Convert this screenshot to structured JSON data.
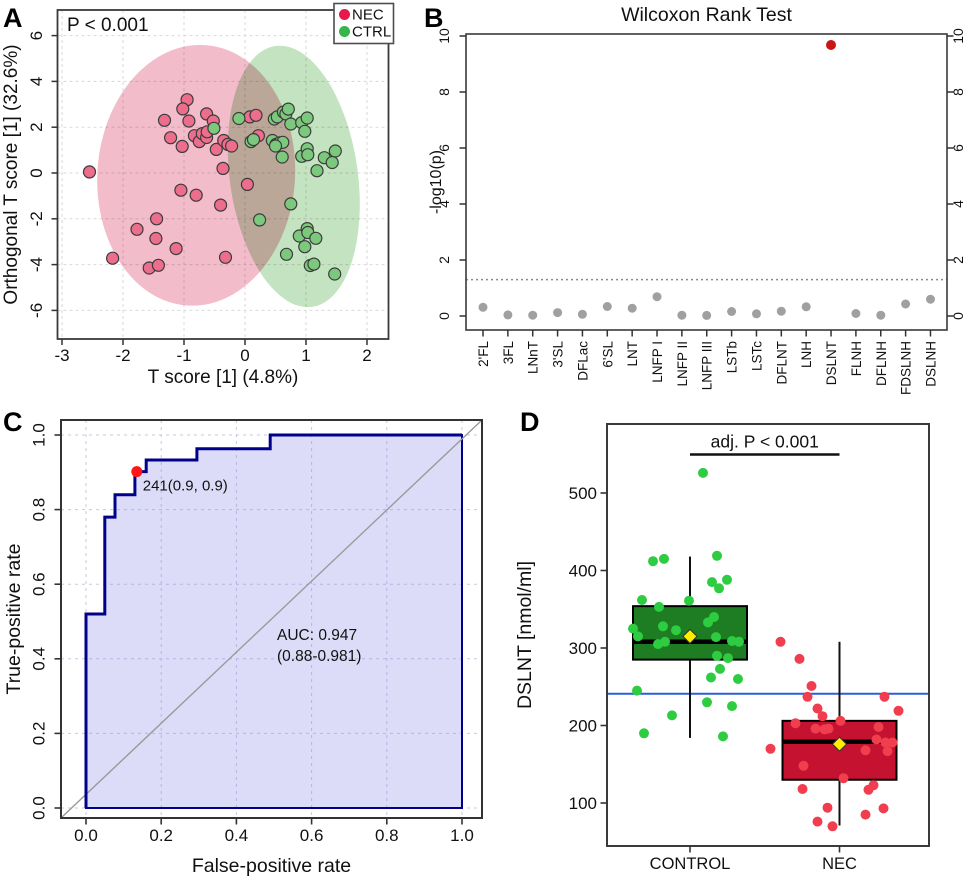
{
  "panels": [
    {
      "label": "A"
    },
    {
      "label": "B"
    },
    {
      "label": "C"
    },
    {
      "label": "D"
    }
  ],
  "chart_data": [
    {
      "type": "scatter",
      "panel": "A",
      "annotation": "P < 0.001",
      "xlabel": "T score [1] (4.8%)",
      "ylabel": "Orthogonal T score [1] (32.6%)",
      "xticks": [
        -3,
        -2,
        -1,
        0,
        1,
        2
      ],
      "yticks": [
        -6,
        -4,
        -2,
        0,
        2,
        4,
        6
      ],
      "xlim": [
        -3,
        2.3
      ],
      "ylim": [
        -7.4,
        7.3
      ],
      "grid": true,
      "legend": [
        {
          "label": "NEC",
          "color": "#e8194a"
        },
        {
          "label": "CTRL",
          "color": "#38b44a"
        }
      ],
      "ellipses": [
        {
          "group": "NEC",
          "cx": -0.8,
          "cy": -0.1,
          "rx": 1.62,
          "ry": 5.7,
          "angle_deg": 4,
          "fill": "#f2bcca"
        },
        {
          "group": "CTRL",
          "cx": 0.8,
          "cy": -0.15,
          "rx": 1.05,
          "ry": 5.75,
          "angle_deg": -8,
          "fill": "#c4e3c0"
        }
      ],
      "series": [
        {
          "name": "NEC",
          "fill": "#ec6d8c",
          "stroke": "#3c3c3c",
          "points": [
            [
              -2.55,
              0.05
            ],
            [
              -0.95,
              3.2
            ],
            [
              -1.02,
              2.8
            ],
            [
              -1.32,
              2.3
            ],
            [
              -0.92,
              2.27
            ],
            [
              -0.63,
              2.58
            ],
            [
              -0.52,
              2.27
            ],
            [
              -1.22,
              1.54
            ],
            [
              -1.03,
              1.16
            ],
            [
              -0.83,
              1.63
            ],
            [
              -0.75,
              1.37
            ],
            [
              -0.7,
              1.72
            ],
            [
              -0.63,
              1.55
            ],
            [
              -0.62,
              1.8
            ],
            [
              -0.47,
              1.03
            ],
            [
              -0.35,
              1.42
            ],
            [
              -0.28,
              1.25
            ],
            [
              -0.22,
              1.18
            ],
            [
              0.08,
              2.45
            ],
            [
              0.18,
              2.52
            ],
            [
              0.22,
              1.63
            ],
            [
              -0.36,
              0.2
            ],
            [
              0.04,
              -0.5
            ],
            [
              -1.05,
              -0.75
            ],
            [
              -0.8,
              -0.97
            ],
            [
              -0.4,
              -1.4
            ],
            [
              -1.45,
              -2.0
            ],
            [
              -1.77,
              -2.46
            ],
            [
              -1.46,
              -2.86
            ],
            [
              -1.13,
              -3.3
            ],
            [
              -2.17,
              -3.72
            ],
            [
              -1.57,
              -4.15
            ],
            [
              -1.42,
              -4.03
            ],
            [
              -0.32,
              -3.68
            ]
          ]
        },
        {
          "name": "CTRL",
          "fill": "#7cc87c",
          "stroke": "#3c3c3c",
          "points": [
            [
              -0.51,
              1.95
            ],
            [
              -0.1,
              2.38
            ],
            [
              0.1,
              1.37
            ],
            [
              0.14,
              1.46
            ],
            [
              0.48,
              2.36
            ],
            [
              0.53,
              2.45
            ],
            [
              0.63,
              2.66
            ],
            [
              0.67,
              2.58
            ],
            [
              0.71,
              2.79
            ],
            [
              0.75,
              2.14
            ],
            [
              0.93,
              2.2
            ],
            [
              1.02,
              2.4
            ],
            [
              0.98,
              1.82
            ],
            [
              0.45,
              1.42
            ],
            [
              0.51,
              1.25
            ],
            [
              0.57,
              1.32
            ],
            [
              0.62,
              1.34
            ],
            [
              0.5,
              1.18
            ],
            [
              0.61,
              0.7
            ],
            [
              0.93,
              0.73
            ],
            [
              1.02,
              1.06
            ],
            [
              1.03,
              0.8
            ],
            [
              1.3,
              0.67
            ],
            [
              1.48,
              0.96
            ],
            [
              1.43,
              0.46
            ],
            [
              1.18,
              0.1
            ],
            [
              0.75,
              -1.35
            ],
            [
              0.24,
              -2.05
            ],
            [
              0.89,
              -2.75
            ],
            [
              1.02,
              -2.43
            ],
            [
              1.03,
              -2.6
            ],
            [
              1.16,
              -2.85
            ],
            [
              0.98,
              -3.22
            ],
            [
              0.68,
              -3.55
            ],
            [
              1.07,
              -4.04
            ],
            [
              1.13,
              -3.98
            ],
            [
              1.47,
              -4.41
            ]
          ]
        }
      ]
    },
    {
      "type": "scatter-categorical",
      "panel": "B",
      "title": "Wilcoxon Rank Test",
      "ylabel": "-log10(p)",
      "yticks": [
        0,
        2,
        4,
        6,
        8,
        10
      ],
      "ylim": [
        0,
        10
      ],
      "threshold": 1.3,
      "categories": [
        "2'FL",
        "3FL",
        "LNnT",
        "3'SL",
        "DFLac",
        "6'SL",
        "LNT",
        "LNFP I",
        "LNFP II",
        "LNFP III",
        "LSTb",
        "LSTc",
        "DFLNT",
        "LNH",
        "DSLNT",
        "FLNH",
        "DFLNH",
        "FDSLNH",
        "DSLNH"
      ],
      "values": [
        0.31,
        0.04,
        0.03,
        0.12,
        0.06,
        0.34,
        0.28,
        0.69,
        0.03,
        0.02,
        0.16,
        0.08,
        0.17,
        0.33,
        9.68,
        0.09,
        0.03,
        0.43,
        0.6
      ],
      "highlight_category": "DSLNT",
      "dot_color": "#a0a0a0",
      "highlight_color": "#cc1414",
      "threshold_color": "#8a8a8a"
    },
    {
      "type": "roc",
      "panel": "C",
      "xlabel": "False-positive rate",
      "ylabel": "True-positive rate",
      "xticks": [
        0.0,
        0.2,
        0.4,
        0.6,
        0.8,
        1.0
      ],
      "yticks": [
        0.0,
        0.2,
        0.4,
        0.6,
        0.8,
        1.0
      ],
      "curve": [
        [
          0,
          0
        ],
        [
          0,
          0.52
        ],
        [
          0.05,
          0.52
        ],
        [
          0.05,
          0.78
        ],
        [
          0.077,
          0.78
        ],
        [
          0.077,
          0.84
        ],
        [
          0.13,
          0.84
        ],
        [
          0.13,
          0.902
        ],
        [
          0.16,
          0.902
        ],
        [
          0.16,
          0.933
        ],
        [
          0.295,
          0.933
        ],
        [
          0.295,
          0.963
        ],
        [
          0.49,
          0.963
        ],
        [
          0.49,
          1
        ],
        [
          1,
          1
        ]
      ],
      "marker": {
        "x": 0.135,
        "y": 0.902,
        "label": "241(0.9, 0.9)",
        "color": "#fe1515"
      },
      "auc_lines": [
        "AUC: 0.947",
        "(0.88-0.981)"
      ],
      "curve_color": "#00008b",
      "fill_color": "rgba(138,138,232,0.30)",
      "text_color": "#2a2aa6",
      "diagonal_color": "#9a9a9a"
    },
    {
      "type": "boxplot",
      "panel": "D",
      "ylabel": "DSLNT [nmol/ml]",
      "yticks": [
        100,
        200,
        300,
        400,
        500
      ],
      "significance": "adj. P < 0.001",
      "threshold": {
        "value": 241,
        "color": "#2b5fd9"
      },
      "mean_marker_color": "#ffee00",
      "groups": [
        {
          "name": "CONTROL",
          "box_color": "#1e7d22",
          "dot_color": "#2ecc40",
          "q1": 285,
          "median": 308,
          "q3": 354,
          "whisker_low": 184,
          "whisker_high": 418,
          "mean": 315,
          "points": [
            [
              13,
              526
            ],
            [
              -37,
              412
            ],
            [
              -26,
              415
            ],
            [
              27,
              419
            ],
            [
              22,
              385
            ],
            [
              37,
              388
            ],
            [
              29,
              377
            ],
            [
              -48,
              362
            ],
            [
              -1,
              361
            ],
            [
              -31,
              353
            ],
            [
              -57,
              325
            ],
            [
              -27,
              328
            ],
            [
              -14,
              323
            ],
            [
              18,
              333
            ],
            [
              24,
              340
            ],
            [
              -52,
              315
            ],
            [
              -32,
              305
            ],
            [
              -25,
              308
            ],
            [
              26,
              314
            ],
            [
              27,
              290
            ],
            [
              38,
              287
            ],
            [
              42,
              309
            ],
            [
              49,
              308
            ],
            [
              30,
              273
            ],
            [
              21,
              262
            ],
            [
              48,
              260
            ],
            [
              -53,
              245
            ],
            [
              17,
              230
            ],
            [
              42,
              225
            ],
            [
              -18,
              213
            ],
            [
              -46,
              190
            ],
            [
              33,
              186
            ]
          ]
        },
        {
          "name": "NEC",
          "box_color": "#c41230",
          "dot_color": "#f03e4e",
          "q1": 130,
          "median": 179,
          "q3": 206,
          "whisker_low": 71,
          "whisker_high": 308,
          "mean": 176,
          "points": [
            [
              -59,
              308
            ],
            [
              -40,
              286
            ],
            [
              -28,
              251
            ],
            [
              -32,
              237
            ],
            [
              -22,
              222
            ],
            [
              45,
              237
            ],
            [
              59,
              219
            ],
            [
              -17,
              212
            ],
            [
              -44,
              203
            ],
            [
              -24,
              196
            ],
            [
              -15,
              195
            ],
            [
              -11,
              196
            ],
            [
              1,
              206
            ],
            [
              39,
              198
            ],
            [
              37,
              182
            ],
            [
              46,
              178
            ],
            [
              53,
              178
            ],
            [
              -69,
              170
            ],
            [
              26,
              168
            ],
            [
              48,
              167
            ],
            [
              -36,
              148
            ],
            [
              4,
              132
            ],
            [
              -37,
              118
            ],
            [
              29,
              117
            ],
            [
              34,
              123
            ],
            [
              -12,
              94
            ],
            [
              26,
              85
            ],
            [
              44,
              93
            ],
            [
              -22,
              76
            ],
            [
              -7,
              70
            ]
          ]
        }
      ]
    }
  ]
}
